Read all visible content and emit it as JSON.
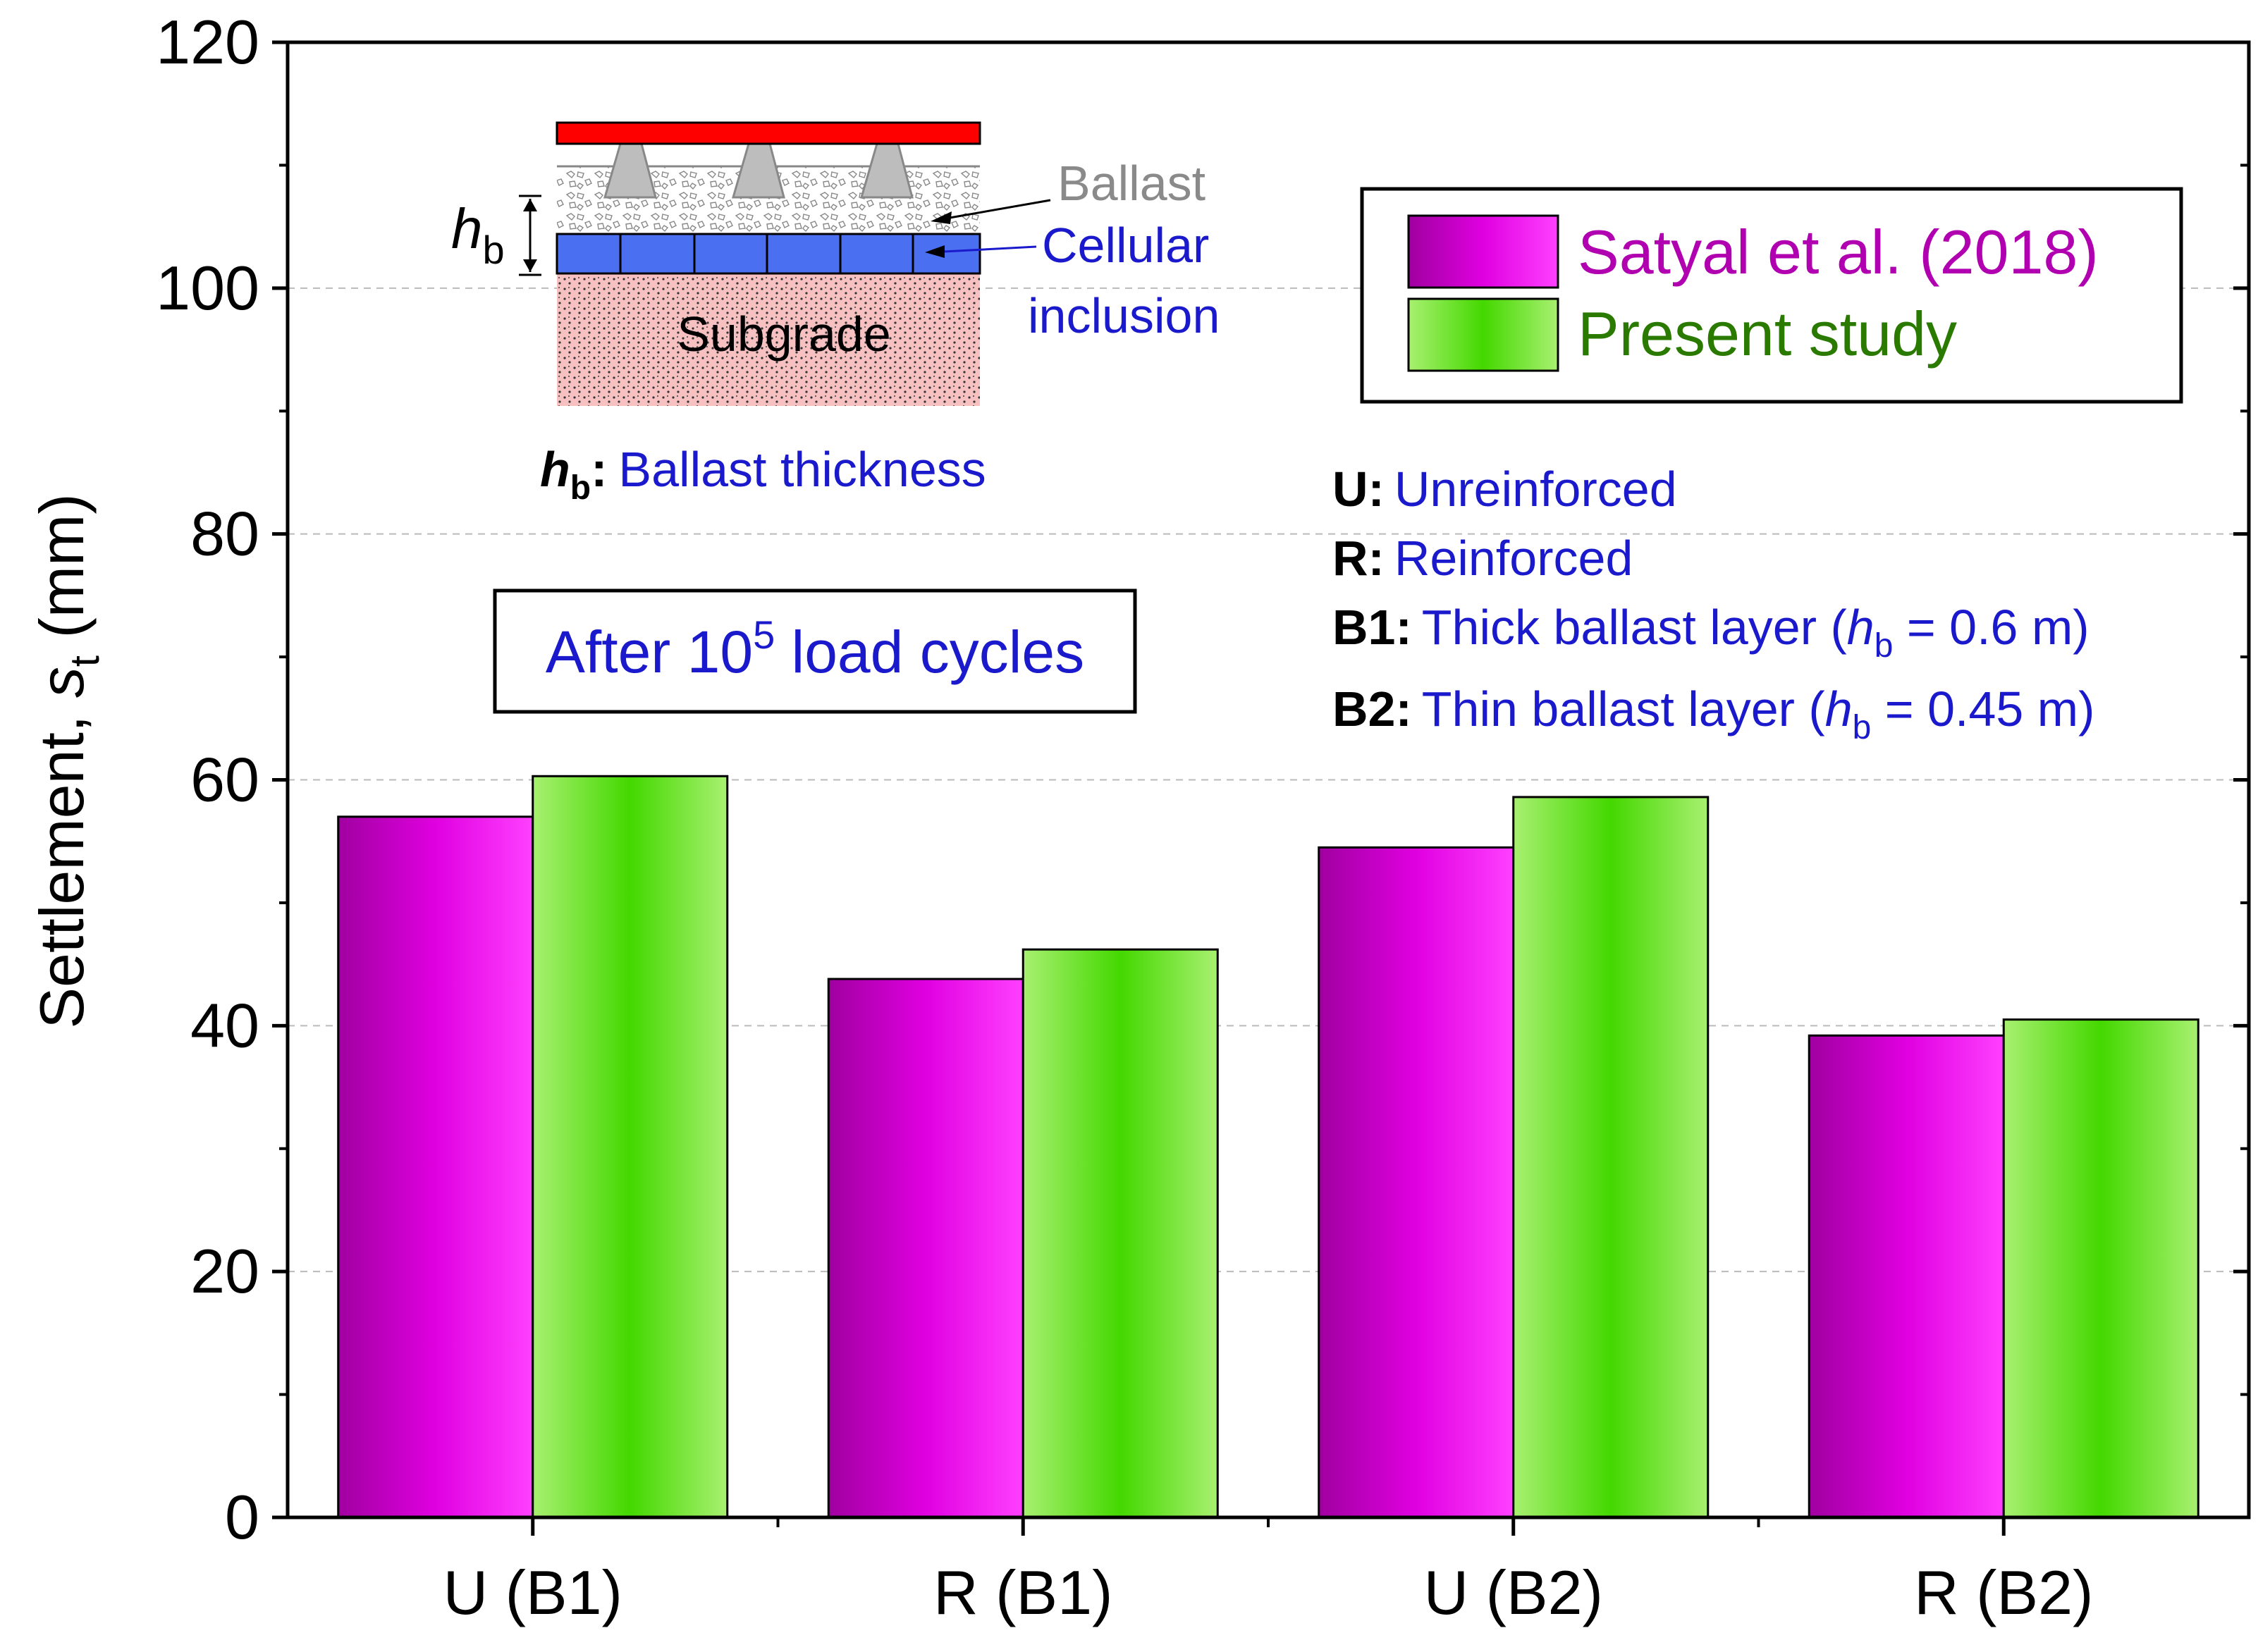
{
  "chart_data": {
    "type": "bar",
    "ylabel_main": "Settlement, ",
    "ylabel_var": "s",
    "ylabel_sub": "t",
    "ylabel_unit": " (mm)",
    "xlabel": "",
    "ylim": [
      0,
      120
    ],
    "yticks": [
      "0",
      "20",
      "40",
      "60",
      "80",
      "100",
      "120"
    ],
    "categories": [
      "U (B1)",
      "R (B1)",
      "U (B2)",
      "R (B2)"
    ],
    "series": [
      {
        "name": "Satyal et al. (2018)",
        "values": [
          57.0,
          43.8,
          54.5,
          39.2
        ],
        "color": "#cc00cc",
        "text_color": "#b000b0"
      },
      {
        "name": "Present study",
        "values": [
          60.3,
          46.2,
          58.6,
          40.5
        ],
        "color": "#44dd00",
        "text_color": "#2a7a00"
      }
    ],
    "annotation": {
      "main": "After 10",
      "sup": "5",
      "rest": " load cycles"
    },
    "definitions": [
      {
        "key": "U:",
        "text": "Unreinforced"
      },
      {
        "key": "R:",
        "text": "Reinforced"
      },
      {
        "key": "B1:",
        "text": "Thick ballast layer (",
        "var": "h",
        "sub": "b",
        "tail": " = 0.6 m)"
      },
      {
        "key": "B2:",
        "text": "Thin ballast layer (",
        "var": "h",
        "sub": "b",
        "tail": " = 0.45 m)"
      }
    ],
    "inset": {
      "ballast_label": "Ballast",
      "cell_label_1": "Cellular",
      "cell_label_2": "inclusion",
      "subgrade_label": "Subgrade",
      "hb_var": "h",
      "hb_sub": "b",
      "hb_def_key": ":",
      "hb_def_text": "Ballast thickness"
    },
    "colors": {
      "axis": "#000000",
      "grid": "#bbbbbb",
      "blue_text": "#1a1acc",
      "rail": "#ff0000",
      "sleeper": "#bdbdbd",
      "ballast_text": "#8a8a8a",
      "cellular": "#4a6ff0",
      "subgrade": "#f7c1c1"
    }
  }
}
